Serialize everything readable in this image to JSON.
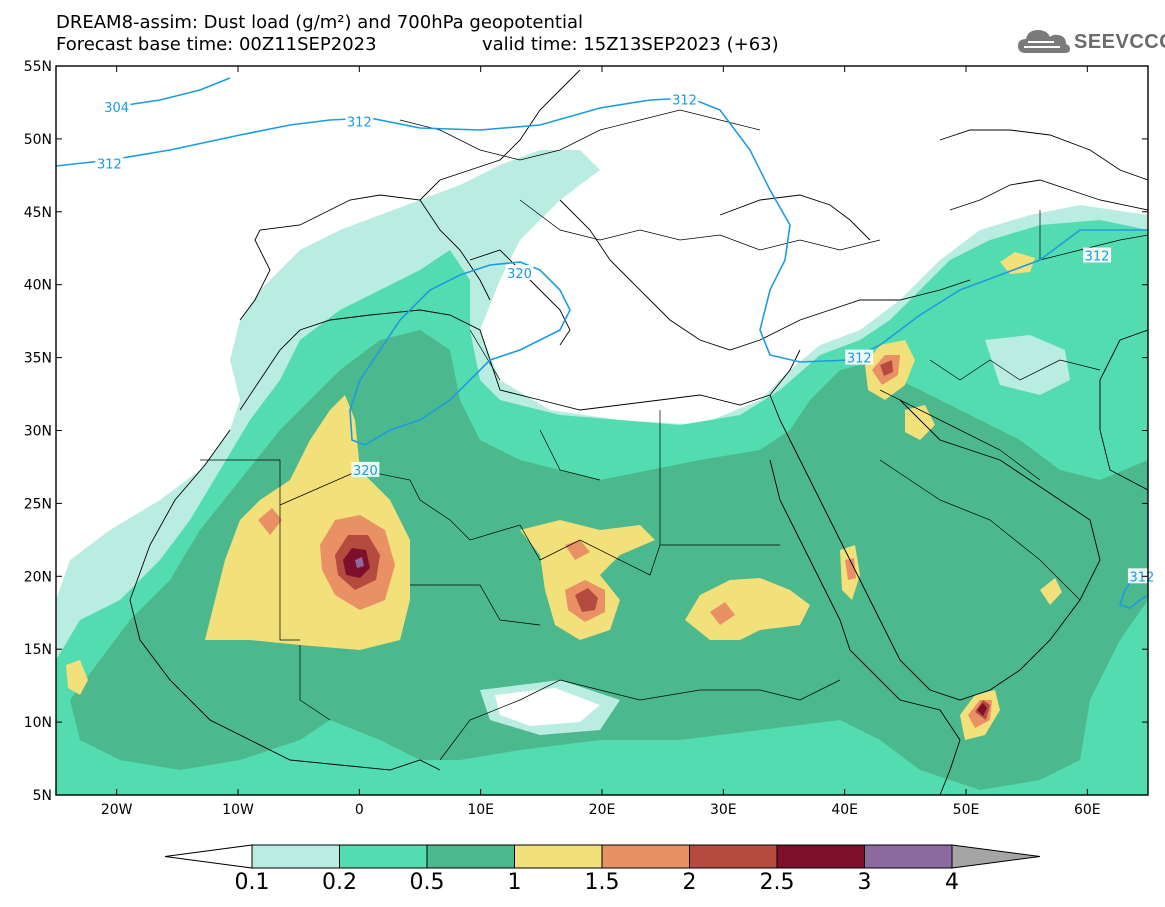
{
  "title": {
    "line1": "DREAM8-assim: Dust load (g/m²) and 700hPa geopotential",
    "base_time": "Forecast base time: 00Z11SEP2023",
    "valid_time": "valid time: 15Z13SEP2023 (+63)"
  },
  "logo": {
    "icon": "cloud-icon",
    "text": "SEEVCCC"
  },
  "map": {
    "lat_range": [
      5,
      55
    ],
    "lon_range": [
      -25,
      65
    ],
    "lat_ticks": [
      {
        "value": 55,
        "label": "55N"
      },
      {
        "value": 50,
        "label": "50N"
      },
      {
        "value": 45,
        "label": "45N"
      },
      {
        "value": 40,
        "label": "40N"
      },
      {
        "value": 35,
        "label": "35N"
      },
      {
        "value": 30,
        "label": "30N"
      },
      {
        "value": 25,
        "label": "25N"
      },
      {
        "value": 20,
        "label": "20N"
      },
      {
        "value": 15,
        "label": "15N"
      },
      {
        "value": 10,
        "label": "10N"
      },
      {
        "value": 5,
        "label": "5N"
      }
    ],
    "lon_ticks": [
      {
        "value": -20,
        "label": "20W"
      },
      {
        "value": -10,
        "label": "10W"
      },
      {
        "value": 0,
        "label": "0"
      },
      {
        "value": 10,
        "label": "10E"
      },
      {
        "value": 20,
        "label": "20E"
      },
      {
        "value": 30,
        "label": "30E"
      },
      {
        "value": 40,
        "label": "40E"
      },
      {
        "value": 50,
        "label": "50E"
      },
      {
        "value": 60,
        "label": "60E"
      }
    ],
    "contour_color": "#1e9be0",
    "contour_labels": [
      {
        "text": "304",
        "lon": -20,
        "lat": 52.2
      },
      {
        "text": "312",
        "lon": -20.6,
        "lat": 48.3
      },
      {
        "text": "312",
        "lon": 0,
        "lat": 51.2
      },
      {
        "text": "312",
        "lon": 26.8,
        "lat": 52.7
      },
      {
        "text": "312",
        "lon": 60.8,
        "lat": 42.0
      },
      {
        "text": "312",
        "lon": 41.2,
        "lat": 35.0
      },
      {
        "text": "312",
        "lon": 64.5,
        "lat": 20.0
      },
      {
        "text": "320",
        "lon": 13.2,
        "lat": 40.8
      },
      {
        "text": "320",
        "lon": 0.5,
        "lat": 27.3
      }
    ]
  },
  "colorbar": {
    "thresholds": [
      "0.1",
      "0.2",
      "0.5",
      "1",
      "1.5",
      "2",
      "2.5",
      "3",
      "4"
    ],
    "colors": [
      "#ffffff",
      "#b9ede1",
      "#53dcb0",
      "#4cb88d",
      "#f2e07a",
      "#e99065",
      "#b54a3f",
      "#7e0f2a",
      "#8c6aa0",
      "#a5a5a5"
    ]
  }
}
